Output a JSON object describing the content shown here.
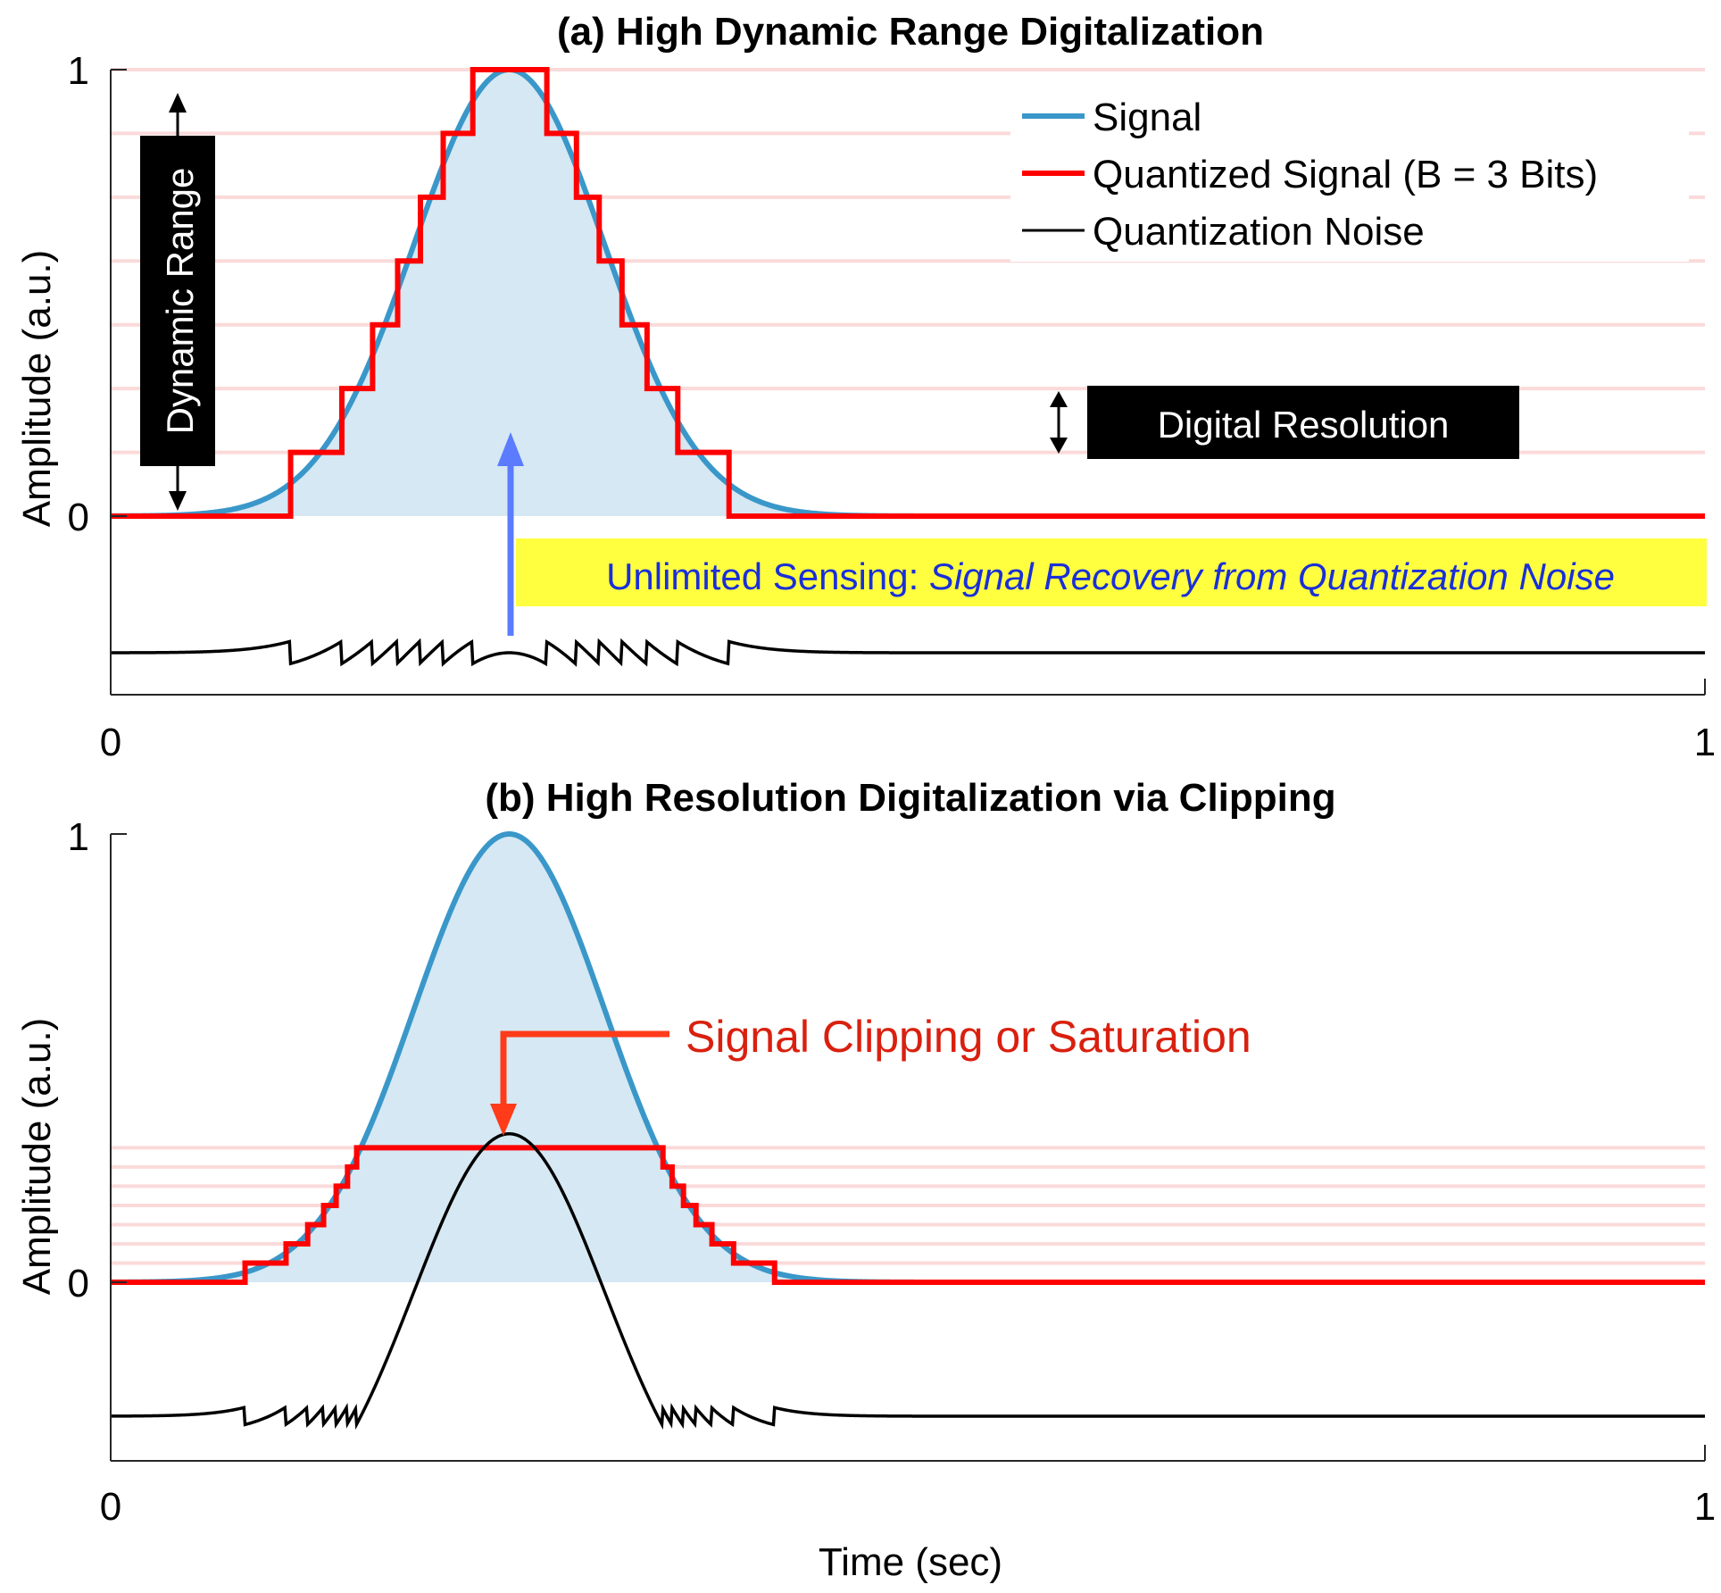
{
  "figure": {
    "xlabel": "Time (sec)"
  },
  "legend": {
    "signal": "Signal",
    "quantized": "Quantized Signal (B = 3 Bits)",
    "noise": "Quantization Noise"
  },
  "annotations": {
    "dynamic_range": "Dynamic Range",
    "digital_resolution": "Digital Resolution",
    "unlimited_prefix": "Unlimited Sensing: ",
    "unlimited_italic": "Signal Recovery from Quantization Noise",
    "clipping": "Signal Clipping or Saturation"
  },
  "colors": {
    "signal": "#3a97c9",
    "fill": "#d5e8f3",
    "quantized": "#ff0000",
    "noise": "#000000",
    "grid": "#fbdada",
    "blue_arrow": "#5b7cff",
    "unlimited_text": "#1a2fd8",
    "highlight": "#ffff40",
    "clip_arrow": "#ff3b1a",
    "clip_text": "#d9200f"
  },
  "chart_data": [
    {
      "type": "line",
      "title": "(a) High Dynamic Range Digitalization",
      "ylabel": "Amplitude (a.u.)",
      "xlim": [
        0,
        1
      ],
      "ylim": [
        0,
        1
      ],
      "x_ticks": [
        "0",
        "1"
      ],
      "y_ticks": [
        "0",
        "1"
      ],
      "legend_position": "top-right",
      "signal": {
        "name": "Signal",
        "shape": "gaussian",
        "center": 0.25,
        "width": 0.06,
        "peak": 1
      },
      "quantized": {
        "name": "Quantized Signal (B = 3 Bits)",
        "step": 0.142857,
        "clip": 1
      },
      "noise": {
        "name": "Quantization Noise"
      },
      "grid_levels": [
        0.142857,
        0.285714,
        0.428571,
        0.571429,
        0.714286,
        0.857143,
        1
      ]
    },
    {
      "type": "line",
      "title": "(b) High Resolution Digitalization via Clipping",
      "ylabel": "Amplitude (a.u.)",
      "xlim": [
        0,
        1
      ],
      "ylim": [
        0,
        1
      ],
      "x_ticks": [
        "0",
        "1"
      ],
      "y_ticks": [
        "0",
        "1"
      ],
      "signal": {
        "name": "Signal",
        "shape": "gaussian",
        "center": 0.25,
        "width": 0.06,
        "peak": 1
      },
      "quantized": {
        "name": "Quantized Signal (B = 3 Bits)",
        "step": 0.042857,
        "clip": 0.3
      },
      "noise": {
        "name": "Quantization Noise"
      },
      "grid_levels": [
        0.042857,
        0.085714,
        0.128571,
        0.171429,
        0.214286,
        0.257143,
        0.3
      ]
    }
  ]
}
